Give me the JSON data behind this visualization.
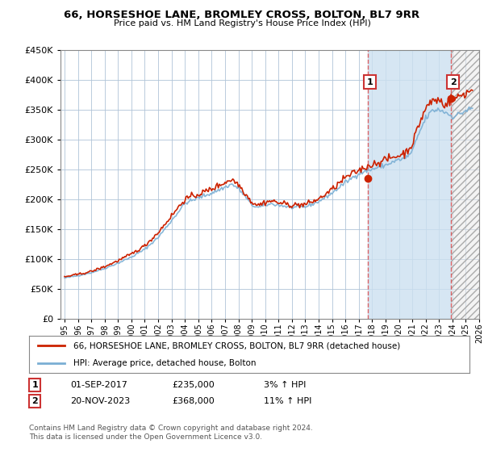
{
  "title": "66, HORSESHOE LANE, BROMLEY CROSS, BOLTON, BL7 9RR",
  "subtitle": "Price paid vs. HM Land Registry's House Price Index (HPI)",
  "ylim": [
    0,
    450000
  ],
  "yticks": [
    0,
    50000,
    100000,
    150000,
    200000,
    250000,
    300000,
    350000,
    400000,
    450000
  ],
  "xlim_start": 1994.7,
  "xlim_end": 2026.0,
  "bg_color": "#dce8f5",
  "plot_bg_color": "#ffffff",
  "grid_color": "#b0c4d8",
  "hpi_color": "#7bafd4",
  "price_color": "#cc2200",
  "sale1_date": 2017.67,
  "sale1_price": 235000,
  "sale2_date": 2023.9,
  "sale2_price": 368000,
  "legend_house": "66, HORSESHOE LANE, BROMLEY CROSS, BOLTON, BL7 9RR (detached house)",
  "legend_hpi": "HPI: Average price, detached house, Bolton",
  "footnote": "Contains HM Land Registry data © Crown copyright and database right 2024.\nThis data is licensed under the Open Government Licence v3.0.",
  "sale1_text": "01-SEP-2017",
  "sale1_price_text": "£235,000",
  "sale1_pct": "3% ↑ HPI",
  "sale2_text": "20-NOV-2023",
  "sale2_price_text": "£368,000",
  "sale2_pct": "11% ↑ HPI"
}
